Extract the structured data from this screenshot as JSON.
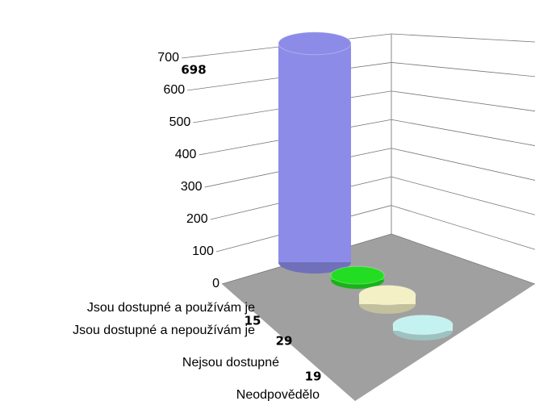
{
  "chart_data": {
    "type": "bar3d",
    "categories": [
      "Jsou dostupné a používám je",
      "Jsou dostupné a nepoužívám je",
      "Nejsou dostupné",
      "Neodpovědělo"
    ],
    "values": [
      698,
      15,
      29,
      19
    ],
    "colors": [
      "#8c8ce8",
      "#22dd22",
      "#f2f0c4",
      "#c4f2f0"
    ],
    "ylim": [
      0,
      700
    ],
    "yticks": [
      0,
      100,
      200,
      300,
      400,
      500,
      600,
      700
    ],
    "grid": true
  }
}
